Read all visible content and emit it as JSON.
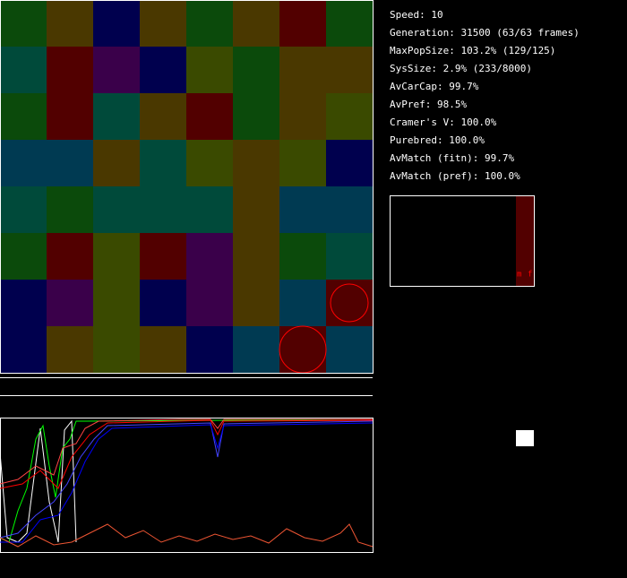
{
  "stats": [
    "Speed: 10",
    "Generation: 31500 (63/63 frames)",
    "MaxPopSize: 103.2% (129/125)",
    "SysSize: 2.9% (233/8000)",
    "AvCarCap: 99.7%",
    "AvPref: 98.5%",
    "Cramer's V: 100.0%",
    "Purebred: 100.0%",
    "AvMatch (fitn): 99.7%",
    "AvMatch (pref): 100.0%"
  ],
  "panel": {
    "labels": [
      "m",
      "f"
    ]
  }
}
